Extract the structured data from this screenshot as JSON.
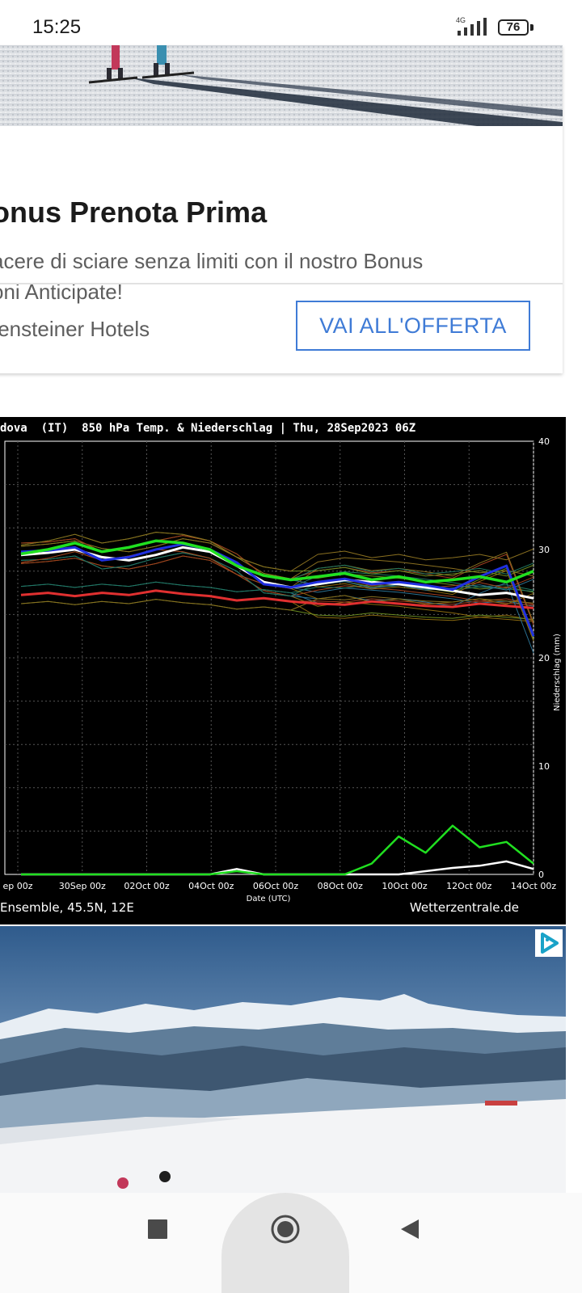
{
  "status_bar": {
    "time": "15:25",
    "network": "4G",
    "battery": "76"
  },
  "ad_card": {
    "title": "onus Prenota Prima",
    "description_line1": "acere di sciare senza limiti con il nostro Bonus",
    "description_line2": "oni Anticipate!",
    "advertiser": "tensteiner Hotels",
    "cta_label": "VAI ALL'OFFERTA"
  },
  "chart_data": {
    "type": "line",
    "title": "dova  (IT)  850 hPa Temp. & Niederschlag | Thu, 28Sep2023 06Z",
    "x_tick_labels": [
      "ep 00z",
      "30Sep 00z",
      "02Oct 00z",
      "04Oct 00z",
      "06Oct 00z",
      "08Oct 00z",
      "10Oct 00z",
      "12Oct 00z",
      "14Oct 00z"
    ],
    "xlabel": "Date (UTC)",
    "ylabel_right": "Niederschlag (mm)",
    "y_right_ticks": [
      "0",
      "10",
      "20",
      "30",
      "40"
    ],
    "ylim": [
      0,
      40
    ],
    "footer_left": "Ensemble, 45.5N, 12E",
    "footer_right": "Wetterzentrale.de",
    "series": [
      {
        "color": "#ffffff",
        "values": [
          29.5,
          29.7,
          30.0,
          29.3,
          29.0,
          29.5,
          30.2,
          29.8,
          28.5,
          27.0,
          26.5,
          26.8,
          27.2,
          27.0,
          26.8,
          26.5,
          26.2,
          25.8,
          26.0,
          25.5
        ]
      },
      {
        "color": "#e03030",
        "values": [
          25.8,
          26.0,
          25.7,
          26.0,
          25.8,
          26.2,
          25.9,
          25.7,
          25.3,
          25.5,
          25.2,
          25.0,
          24.9,
          25.2,
          25.0,
          24.8,
          24.7,
          25.0,
          24.8,
          24.6
        ]
      },
      {
        "color": "#2030e0",
        "values": [
          29.8,
          29.9,
          30.2,
          29.0,
          29.3,
          30.0,
          30.5,
          30.0,
          28.8,
          26.8,
          26.5,
          27.0,
          27.3,
          26.8,
          27.0,
          26.7,
          26.3,
          27.5,
          28.5,
          22.0
        ]
      },
      {
        "color": "#20e020",
        "values": [
          29.6,
          30.0,
          30.6,
          29.8,
          30.2,
          30.8,
          30.6,
          30.0,
          28.5,
          27.6,
          27.2,
          27.5,
          27.8,
          27.2,
          27.5,
          27.0,
          27.2,
          27.5,
          27.0,
          28.0
        ]
      }
    ],
    "precip_series": [
      {
        "color": "#ffffff",
        "values": [
          0,
          0,
          0,
          0,
          0,
          0,
          0,
          0,
          0.5,
          0,
          0,
          0,
          0,
          0,
          0,
          0.3,
          0.6,
          0.8,
          1.2,
          0.5
        ]
      },
      {
        "color": "#20e020",
        "values": [
          0,
          0,
          0,
          0,
          0,
          0,
          0,
          0,
          0.3,
          0,
          0,
          0,
          0,
          1.0,
          3.5,
          2.0,
          4.5,
          2.5,
          3.0,
          1.0
        ]
      }
    ]
  },
  "icons": {
    "ad_choice": "ad-choices-icon",
    "nav_recent": "square-icon",
    "nav_home": "circle-icon",
    "nav_back": "triangle-back-icon"
  }
}
